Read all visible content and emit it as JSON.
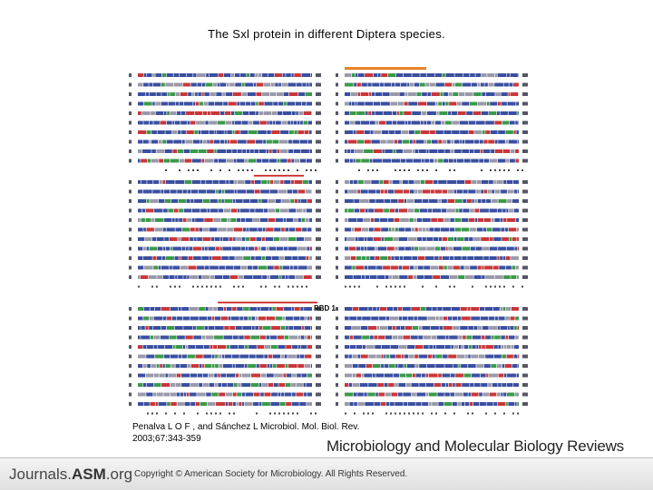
{
  "title": "The Sxl protein in different Diptera species.",
  "figure": {
    "label": "RBD 1",
    "description_colors": {
      "bar_orange": "#e8822a",
      "bar_red": "#d04040",
      "seq_blue": "#3a4fa0",
      "seq_red": "#c8373a",
      "seq_green": "#3a9a4a"
    }
  },
  "citation": {
    "line1": "Penalva L O F , and Sánchez L Microbiol. Mol. Biol. Rev.",
    "line2": "2003;67:343-359"
  },
  "journal_name": "Microbiology and Molecular Biology Reviews",
  "footer": {
    "brand_prefix": "Journals.",
    "brand_asm": "ASM",
    "brand_suffix": ".org",
    "copyright_symbol": "©",
    "copyright": "Copyright © American Society for Microbiology. All Rights Reserved."
  }
}
